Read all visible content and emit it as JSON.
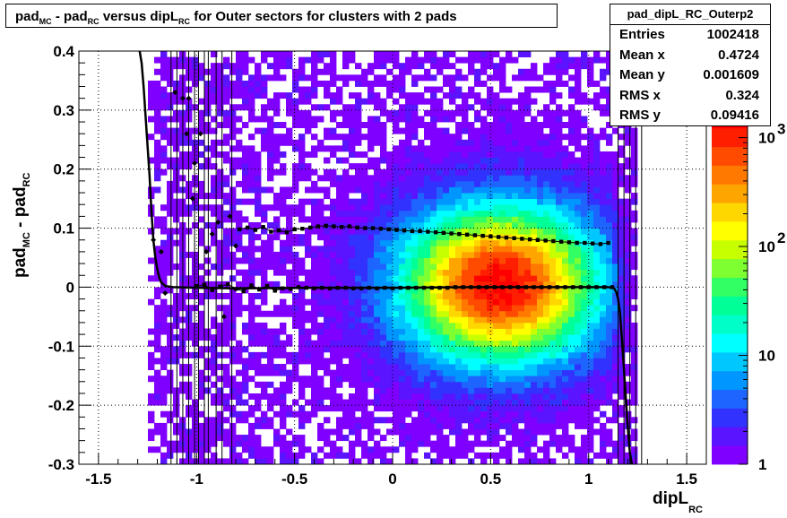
{
  "chart_data": {
    "type": "heatmap",
    "title_parts": {
      "a": "pad",
      "a_sub": "MC",
      "b": " - pad",
      "b_sub": "RC",
      "c": " versus dipL",
      "c_sub": "RC",
      "d": " for Outer sectors for clusters with 2 pads"
    },
    "xlabel": "dipL",
    "xlabel_sub": "RC",
    "ylabel": "pad",
    "ylabel_sub": "MC",
    "ylabel_b": " - pad",
    "ylabel_b_sub": "RC",
    "xlim": [
      -1.6,
      1.6
    ],
    "ylim": [
      -0.3,
      0.4
    ],
    "xticks": [
      "-1.5",
      "-1",
      "-0.5",
      "0",
      "0.5",
      "1",
      "1.5"
    ],
    "xtick_values": [
      -1.5,
      -1,
      -0.5,
      0,
      0.5,
      1,
      1.5
    ],
    "yticks": [
      "-0.3",
      "-0.2",
      "-0.1",
      "0",
      "0.1",
      "0.2",
      "0.3",
      "0.4"
    ],
    "ytick_values": [
      -0.3,
      -0.2,
      -0.1,
      0,
      0.1,
      0.2,
      0.3,
      0.4
    ],
    "grid": true,
    "colorbar_scale": "log",
    "colorbar_ticks": [
      "1",
      "10",
      "10",
      "10"
    ],
    "colorbar_tick_exps": [
      "",
      "",
      "2",
      "3"
    ],
    "colorbar_tick_values": [
      1,
      10,
      100,
      1000
    ],
    "colors": [
      "#7f00ff",
      "#5a14ff",
      "#3232ff",
      "#1e64ff",
      "#0096ff",
      "#00c8ff",
      "#00ffff",
      "#00ffc8",
      "#00ff96",
      "#32ff64",
      "#7dff32",
      "#c8ff00",
      "#ffff00",
      "#ffd700",
      "#ffa500",
      "#ff7800",
      "#ff4b00",
      "#ff1e00",
      "#ff0000"
    ],
    "stats": {
      "name": "pad_dipL_RC_Outerp2",
      "rows": [
        {
          "label": "Entries",
          "value": "1002418"
        },
        {
          "label": "Mean x",
          "value": "0.4724"
        },
        {
          "label": "Mean y",
          "value": "0.001609"
        },
        {
          "label": "RMS x",
          "value": "0.324"
        },
        {
          "label": "RMS y",
          "value": "0.09416"
        }
      ]
    },
    "series": [
      {
        "type": "profile",
        "x": [
          -0.78,
          -0.74,
          -0.7,
          -0.66,
          -0.62,
          -0.58,
          -0.54,
          -0.5,
          -0.46,
          -0.42,
          -0.38,
          -0.34,
          -0.3,
          -0.26,
          -0.22,
          -0.18,
          -0.14,
          -0.1,
          -0.06,
          -0.02,
          0.02,
          0.06,
          0.1,
          0.14,
          0.18,
          0.22,
          0.26,
          0.3,
          0.34,
          0.38,
          0.42,
          0.46,
          0.5,
          0.54,
          0.58,
          0.62,
          0.66,
          0.7,
          0.74,
          0.78,
          0.82,
          0.86,
          0.9,
          0.94,
          0.98,
          1.02,
          1.06,
          1.1
        ],
        "y": [
          0.098,
          0.101,
          0.097,
          0.102,
          0.094,
          0.096,
          0.093,
          0.098,
          0.099,
          0.101,
          0.103,
          0.104,
          0.103,
          0.102,
          0.103,
          0.101,
          0.1,
          0.1,
          0.099,
          0.098,
          0.097,
          0.096,
          0.095,
          0.095,
          0.094,
          0.093,
          0.092,
          0.091,
          0.09,
          0.089,
          0.088,
          0.087,
          0.086,
          0.085,
          0.084,
          0.083,
          0.082,
          0.081,
          0.08,
          0.079,
          0.078,
          0.077,
          0.076,
          0.075,
          0.075,
          0.074,
          0.073,
          0.075
        ]
      },
      {
        "type": "profile",
        "x": [
          -1.0,
          -0.96,
          -0.92,
          -0.88,
          -0.84,
          -0.8,
          -0.76,
          -0.72,
          -0.68,
          -0.64,
          -0.6,
          -0.56,
          -0.52,
          -0.48,
          -0.44,
          -0.4,
          -0.36,
          -0.32,
          -0.28,
          -0.24,
          -0.2,
          -0.16,
          -0.12,
          -0.08,
          -0.04,
          0.0,
          0.04,
          0.08,
          0.12,
          0.16,
          0.2,
          0.24,
          0.28,
          0.32,
          0.36,
          0.4,
          0.44,
          0.48,
          0.52,
          0.56,
          0.6,
          0.64,
          0.68,
          0.72,
          0.76,
          0.8,
          0.84,
          0.88,
          0.92,
          0.96,
          1.0,
          1.04,
          1.08,
          1.12
        ],
        "y": [
          0.002,
          0.004,
          -0.005,
          0.001,
          0.005,
          -0.003,
          -0.007,
          0.003,
          -0.004,
          0.002,
          -0.006,
          -0.002,
          -0.003,
          0.0,
          -0.001,
          -0.002,
          -0.001,
          -0.002,
          -0.001,
          -0.001,
          -0.002,
          -0.002,
          -0.001,
          -0.002,
          -0.001,
          -0.002,
          -0.001,
          -0.001,
          -0.001,
          -0.001,
          -0.001,
          -0.001,
          -0.001,
          0.0,
          0.0,
          0.0,
          0.0,
          0.0,
          0.0,
          0.0,
          0.0,
          0.0,
          0.0,
          0.0,
          0.0,
          0.0,
          0.0,
          0.0,
          0.0,
          0.0,
          0.0,
          0.0,
          0.0,
          0.0
        ]
      },
      {
        "type": "fit",
        "x": [
          -1.29,
          -1.28,
          -1.27,
          -1.26,
          -1.25,
          -1.24,
          -1.23,
          -1.22,
          -1.21,
          -1.2,
          -1.19,
          -1.18,
          -1.16,
          -1.12,
          -1.0,
          -0.8,
          -0.4,
          0.0,
          0.4,
          0.8,
          1.0,
          1.1,
          1.13,
          1.14,
          1.15,
          1.16,
          1.17,
          1.18,
          1.19,
          1.2,
          1.21,
          1.22
        ],
        "y": [
          0.4,
          0.38,
          0.34,
          0.29,
          0.24,
          0.19,
          0.13,
          0.08,
          0.05,
          0.03,
          0.016,
          0.008,
          0.002,
          0.0,
          -0.001,
          -0.002,
          -0.001,
          -0.001,
          0.0,
          0.0,
          0.0,
          0.0,
          -0.002,
          -0.008,
          -0.02,
          -0.045,
          -0.09,
          -0.14,
          -0.19,
          -0.24,
          -0.28,
          -0.3
        ]
      }
    ],
    "scatter_points": {
      "x": [
        -1.22,
        -1.18,
        -1.16,
        -1.11,
        -1.07,
        -1.04,
        -1.01,
        -0.98,
        -0.95,
        -0.92,
        -0.89,
        -0.86,
        -0.83,
        -0.8,
        -1.05,
        -1.02
      ],
      "y": [
        0.08,
        0.06,
        -0.01,
        0.33,
        0.32,
        0.32,
        0.21,
        0.26,
        0.06,
        0.09,
        0.11,
        -0.05,
        0.12,
        0.07,
        0.26,
        0.15
      ]
    }
  }
}
